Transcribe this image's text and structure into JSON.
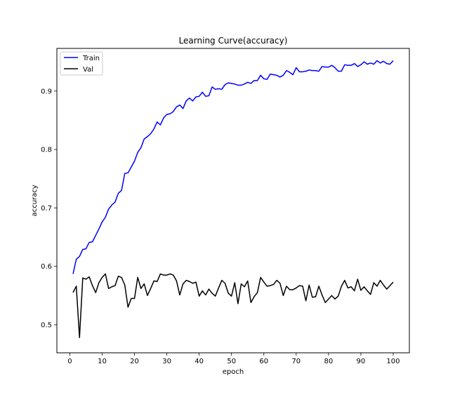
{
  "chart_data": {
    "type": "line",
    "title": "Learning Curve(accuracy)",
    "xlabel": "epoch",
    "ylabel": "accuracy",
    "xlim": [
      -4,
      105
    ],
    "ylim": [
      0.452,
      0.973
    ],
    "xticks": [
      0,
      10,
      20,
      30,
      40,
      50,
      60,
      70,
      80,
      90,
      100
    ],
    "yticks": [
      0.5,
      0.6,
      0.7,
      0.8,
      0.9
    ],
    "ytick_labels": [
      "0.5",
      "0.6",
      "0.7",
      "0.8",
      "0.9"
    ],
    "grid": false,
    "legend_position": "top-left",
    "x": [
      1,
      2,
      3,
      4,
      5,
      6,
      7,
      8,
      9,
      10,
      11,
      12,
      13,
      14,
      15,
      16,
      17,
      18,
      19,
      20,
      21,
      22,
      23,
      24,
      25,
      26,
      27,
      28,
      29,
      30,
      31,
      32,
      33,
      34,
      35,
      36,
      37,
      38,
      39,
      40,
      41,
      42,
      43,
      44,
      45,
      46,
      47,
      48,
      49,
      50,
      51,
      52,
      53,
      54,
      55,
      56,
      57,
      58,
      59,
      60,
      61,
      62,
      63,
      64,
      65,
      66,
      67,
      68,
      69,
      70,
      71,
      72,
      73,
      74,
      75,
      76,
      77,
      78,
      79,
      80,
      81,
      82,
      83,
      84,
      85,
      86,
      87,
      88,
      89,
      90,
      91,
      92,
      93,
      94,
      95,
      96,
      97,
      98,
      99,
      100
    ],
    "series": [
      {
        "name": "Train",
        "color": "#0000ff",
        "values": [
          0.587,
          0.612,
          0.617,
          0.629,
          0.63,
          0.641,
          0.642,
          0.653,
          0.664,
          0.676,
          0.684,
          0.698,
          0.705,
          0.71,
          0.725,
          0.73,
          0.759,
          0.76,
          0.77,
          0.78,
          0.795,
          0.803,
          0.818,
          0.822,
          0.827,
          0.835,
          0.847,
          0.842,
          0.854,
          0.86,
          0.861,
          0.865,
          0.873,
          0.876,
          0.87,
          0.883,
          0.888,
          0.883,
          0.89,
          0.891,
          0.898,
          0.891,
          0.892,
          0.907,
          0.903,
          0.904,
          0.903,
          0.911,
          0.914,
          0.913,
          0.912,
          0.91,
          0.91,
          0.912,
          0.915,
          0.913,
          0.918,
          0.918,
          0.927,
          0.921,
          0.92,
          0.929,
          0.928,
          0.927,
          0.924,
          0.927,
          0.935,
          0.932,
          0.928,
          0.94,
          0.933,
          0.933,
          0.934,
          0.936,
          0.935,
          0.935,
          0.934,
          0.942,
          0.941,
          0.941,
          0.944,
          0.94,
          0.934,
          0.934,
          0.945,
          0.944,
          0.944,
          0.947,
          0.942,
          0.945,
          0.95,
          0.946,
          0.948,
          0.946,
          0.952,
          0.948,
          0.951,
          0.947,
          0.946,
          0.952
        ]
      },
      {
        "name": "Val",
        "color": "#000000",
        "values": [
          0.555,
          0.566,
          0.478,
          0.58,
          0.578,
          0.582,
          0.567,
          0.555,
          0.572,
          0.581,
          0.587,
          0.562,
          0.565,
          0.567,
          0.583,
          0.581,
          0.568,
          0.53,
          0.545,
          0.545,
          0.581,
          0.562,
          0.57,
          0.55,
          0.562,
          0.575,
          0.574,
          0.587,
          0.585,
          0.585,
          0.587,
          0.585,
          0.575,
          0.551,
          0.57,
          0.576,
          0.574,
          0.571,
          0.573,
          0.549,
          0.558,
          0.551,
          0.561,
          0.554,
          0.549,
          0.563,
          0.576,
          0.571,
          0.554,
          0.549,
          0.572,
          0.536,
          0.57,
          0.565,
          0.575,
          0.538,
          0.548,
          0.555,
          0.581,
          0.573,
          0.566,
          0.567,
          0.569,
          0.576,
          0.571,
          0.55,
          0.566,
          0.56,
          0.56,
          0.563,
          0.567,
          0.566,
          0.541,
          0.568,
          0.547,
          0.548,
          0.566,
          0.551,
          0.538,
          0.544,
          0.55,
          0.544,
          0.549,
          0.566,
          0.576,
          0.563,
          0.565,
          0.558,
          0.578,
          0.559,
          0.565,
          0.558,
          0.552,
          0.572,
          0.566,
          0.576,
          0.568,
          0.561,
          0.567,
          0.573
        ]
      }
    ]
  }
}
